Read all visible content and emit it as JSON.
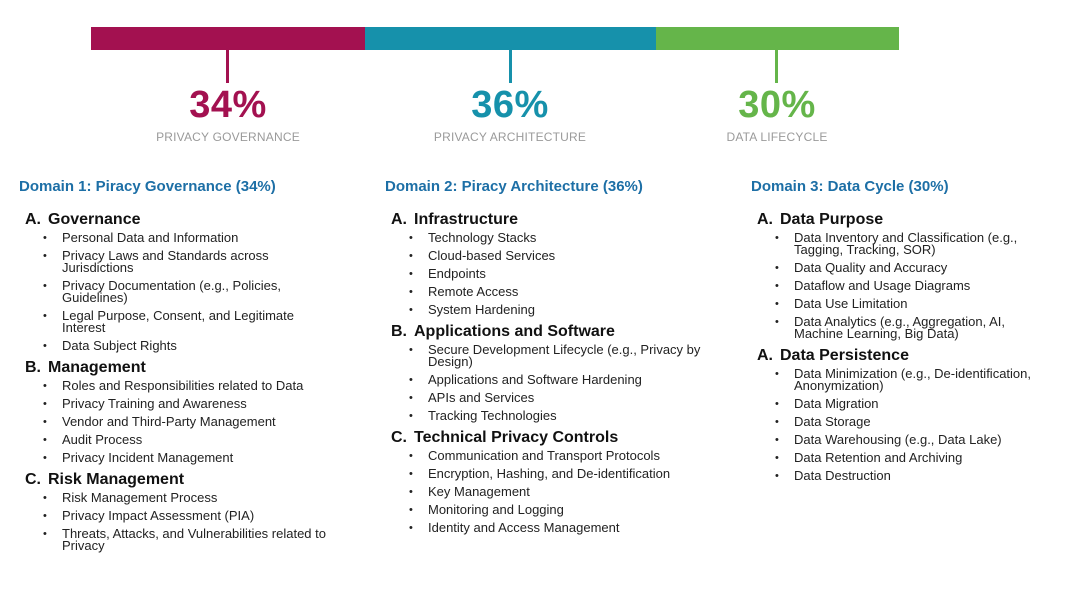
{
  "bars": [
    {
      "color": "#a31150",
      "share": 0.34
    },
    {
      "color": "#1691ab",
      "share": 0.36
    },
    {
      "color": "#65b54a",
      "share": 0.3
    }
  ],
  "summary": [
    {
      "percent": "34%",
      "label": "PRIVACY GOVERNANCE",
      "color": "#a31150"
    },
    {
      "percent": "36%",
      "label": "PRIVACY ARCHITECTURE",
      "color": "#1691ab"
    },
    {
      "percent": "30%",
      "label": "DATA LIFECYCLE",
      "color": "#65b54a"
    }
  ],
  "domains": [
    {
      "title": "Domain 1: Piracy Governance (34%)",
      "sections": [
        {
          "letter": "A.",
          "title": "Governance",
          "items": [
            "Personal Data and Information",
            "Privacy Laws and Standards across Jurisdictions",
            "Privacy Documentation (e.g., Policies, Guidelines)",
            "Legal Purpose, Consent, and Legitimate Interest",
            "Data Subject Rights"
          ]
        },
        {
          "letter": "B.",
          "title": "Management",
          "items": [
            "Roles and Responsibilities related to Data",
            "Privacy Training and Awareness",
            "Vendor and Third-Party Management",
            "Audit Process",
            "Privacy Incident Management"
          ]
        },
        {
          "letter": "C.",
          "title": "Risk Management",
          "items": [
            "Risk Management Process",
            "Privacy Impact Assessment (PIA)",
            "Threats, Attacks, and Vulnerabilities related to Privacy"
          ]
        }
      ]
    },
    {
      "title": "Domain 2: Piracy Architecture (36%)",
      "sections": [
        {
          "letter": "A.",
          "title": "Infrastructure",
          "items": [
            "Technology Stacks",
            "Cloud-based Services",
            "Endpoints",
            "Remote Access",
            "System Hardening"
          ]
        },
        {
          "letter": "B.",
          "title": "Applications and Software",
          "items": [
            "Secure Development Lifecycle (e.g., Privacy by Design)",
            "Applications and Software Hardening",
            "APIs and Services",
            "Tracking Technologies"
          ]
        },
        {
          "letter": "C.",
          "title": "Technical Privacy Controls",
          "items": [
            "Communication and Transport Protocols",
            "Encryption, Hashing, and De-identification",
            "Key Management",
            "Monitoring and Logging",
            "Identity and Access Management"
          ]
        }
      ]
    },
    {
      "title": "Domain 3: Data Cycle (30%)",
      "sections": [
        {
          "letter": "A.",
          "title": "Data Purpose",
          "items": [
            "Data Inventory and Classification (e.g., Tagging, Tracking, SOR)",
            "Data Quality and Accuracy",
            "Dataflow and Usage Diagrams",
            "Data Use Limitation",
            "Data Analytics (e.g., Aggregation, AI, Machine Learning, Big Data)"
          ]
        },
        {
          "letter": "A.",
          "title": "Data Persistence",
          "items": [
            "Data Minimization (e.g., De-identification, Anonymization)",
            "Data Migration",
            "Data Storage",
            "Data Warehousing (e.g., Data Lake)",
            "Data Retention and Archiving",
            "Data Destruction"
          ]
        }
      ]
    }
  ]
}
